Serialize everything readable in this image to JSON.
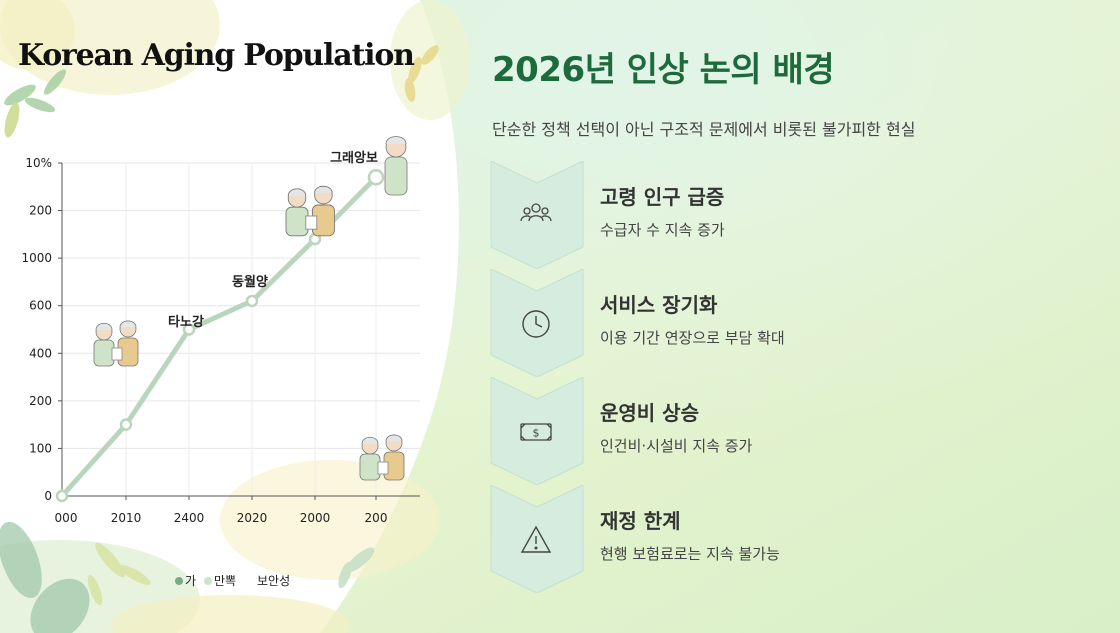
{
  "chart_data": {
    "type": "line",
    "title": "Korean Aging Population",
    "x": [
      "000",
      "2010",
      "2400",
      "2020",
      "2000",
      "200"
    ],
    "y_tick_labels": [
      "0",
      "100",
      "200",
      "400",
      "600",
      "1000",
      "200",
      "10%"
    ],
    "series": [
      {
        "values": [
          0,
          1.5,
          3.5,
          4.1,
          5.4,
          6.7
        ]
      }
    ],
    "annotations": [
      "타노강",
      "동월양",
      "그래앙보"
    ],
    "legend": [
      "가",
      "만뽁",
      "보안성"
    ],
    "grid": true,
    "legend_position": "bottom"
  },
  "right": {
    "title": "2026년 인상 논의 배경",
    "subtitle": "단순한 정책 선택이 아닌 구조적 문제에서 비롯된 불가피한 현실",
    "cards": [
      {
        "icon": "people-icon",
        "heading": "고령 인구 급증",
        "desc": "수급자 수 지속 증가"
      },
      {
        "icon": "clock-icon",
        "heading": "서비스 장기화",
        "desc": "이용 기간 연장으로 부담 확대"
      },
      {
        "icon": "money-icon",
        "heading": "운영비 상승",
        "desc": "인건비·시설비 지속 증가"
      },
      {
        "icon": "warning-icon",
        "heading": "재정 한계",
        "desc": "현행 보험료로는 지속 불가능"
      }
    ]
  },
  "colors": {
    "title_green": "#1d6b3c",
    "line": "#b9d6bd",
    "chevron": "#d6ecdf"
  }
}
